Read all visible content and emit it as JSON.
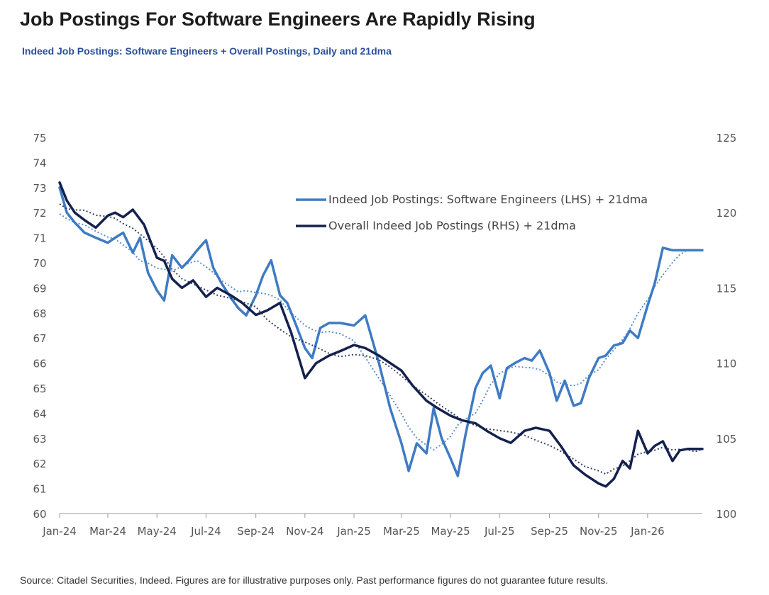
{
  "title": "Job Postings For Software Engineers Are Rapidly Rising",
  "subtitle": "Indeed Job Postings: Software Engineers + Overall Postings, Daily and 21dma",
  "source": "Source: Citadel Securities, Indeed. Figures are for illustrative purposes only. Past performance figures do not guarantee future results.",
  "chart_data": {
    "type": "line",
    "x_ticks": [
      "Jan-24",
      "Mar-24",
      "May-24",
      "Jul-24",
      "Sep-24",
      "Nov-24",
      "Jan-25",
      "Mar-25",
      "May-25",
      "Jul-25",
      "Sep-25",
      "Nov-25",
      "Jan-26"
    ],
    "x_range": [
      "2024-01-01",
      "2026-03-10"
    ],
    "y_left": {
      "range": [
        60,
        75
      ],
      "ticks": [
        "60",
        "61",
        "62",
        "63",
        "64",
        "65",
        "66",
        "67",
        "68",
        "69",
        "70",
        "71",
        "72",
        "73",
        "74",
        "75"
      ]
    },
    "y_right": {
      "range": [
        100,
        125
      ],
      "ticks": [
        "100",
        "105",
        "110",
        "115",
        "120",
        "125"
      ]
    },
    "grid": false,
    "legend_position": "top-center",
    "series": [
      {
        "name": "Indeed Job Postings: Software Engineers (LHS) + 21dma",
        "axis": "left",
        "color": "#3e7bc4",
        "x": [
          "2024-01-01",
          "2024-01-10",
          "2024-01-20",
          "2024-02-01",
          "2024-02-15",
          "2024-03-01",
          "2024-03-10",
          "2024-03-20",
          "2024-04-01",
          "2024-04-10",
          "2024-04-20",
          "2024-05-01",
          "2024-05-10",
          "2024-05-20",
          "2024-06-01",
          "2024-06-10",
          "2024-06-20",
          "2024-07-01",
          "2024-07-10",
          "2024-07-20",
          "2024-08-01",
          "2024-08-10",
          "2024-08-20",
          "2024-09-01",
          "2024-09-10",
          "2024-09-20",
          "2024-10-01",
          "2024-10-10",
          "2024-10-20",
          "2024-11-01",
          "2024-11-10",
          "2024-11-20",
          "2024-12-01",
          "2024-12-15",
          "2025-01-01",
          "2025-01-15",
          "2025-02-01",
          "2025-02-15",
          "2025-03-01",
          "2025-03-10",
          "2025-03-20",
          "2025-04-01",
          "2025-04-10",
          "2025-04-20",
          "2025-05-01",
          "2025-05-10",
          "2025-05-20",
          "2025-06-01",
          "2025-06-10",
          "2025-06-20",
          "2025-07-01",
          "2025-07-10",
          "2025-07-20",
          "2025-08-01",
          "2025-08-10",
          "2025-08-20",
          "2025-09-01",
          "2025-09-10",
          "2025-09-20",
          "2025-10-01",
          "2025-10-10",
          "2025-10-20",
          "2025-11-01",
          "2025-11-10",
          "2025-11-20",
          "2025-12-01",
          "2025-12-10",
          "2025-12-20",
          "2026-01-01",
          "2026-01-10",
          "2026-01-20",
          "2026-02-01",
          "2026-02-10",
          "2026-02-20",
          "2026-03-01",
          "2026-03-10"
        ],
        "values": [
          73.0,
          72.0,
          71.6,
          71.2,
          71.0,
          70.8,
          71.0,
          71.2,
          70.4,
          71.0,
          69.6,
          68.9,
          68.5,
          70.3,
          69.8,
          70.1,
          70.5,
          70.9,
          69.8,
          69.2,
          68.6,
          68.2,
          67.9,
          68.7,
          69.5,
          70.1,
          68.7,
          68.4,
          67.6,
          66.6,
          66.2,
          67.4,
          67.6,
          67.6,
          67.5,
          67.9,
          66.0,
          64.2,
          62.8,
          61.7,
          62.8,
          62.4,
          64.2,
          63.0,
          62.2,
          61.5,
          63.2,
          65.0,
          65.6,
          65.9,
          64.6,
          65.8,
          66.0,
          66.2,
          66.1,
          66.5,
          65.6,
          64.5,
          65.3,
          64.3,
          64.4,
          65.4,
          66.2,
          66.3,
          66.7,
          66.8,
          67.3,
          67.0,
          68.3,
          69.2,
          70.6,
          70.5,
          70.5,
          70.5,
          70.5,
          70.5
        ]
      },
      {
        "name": "Overall Indeed Job Postings (RHS) + 21dma",
        "axis": "right",
        "color": "#14214e",
        "x": [
          "2024-01-01",
          "2024-01-10",
          "2024-01-20",
          "2024-02-01",
          "2024-02-15",
          "2024-03-01",
          "2024-03-10",
          "2024-03-20",
          "2024-04-01",
          "2024-04-15",
          "2024-05-01",
          "2024-05-10",
          "2024-05-20",
          "2024-06-01",
          "2024-06-15",
          "2024-07-01",
          "2024-07-15",
          "2024-08-01",
          "2024-08-15",
          "2024-09-01",
          "2024-09-15",
          "2024-10-01",
          "2024-10-15",
          "2024-11-01",
          "2024-11-15",
          "2024-12-01",
          "2024-12-15",
          "2025-01-01",
          "2025-01-15",
          "2025-02-01",
          "2025-02-15",
          "2025-03-01",
          "2025-03-15",
          "2025-04-01",
          "2025-04-15",
          "2025-05-01",
          "2025-05-15",
          "2025-06-01",
          "2025-06-15",
          "2025-07-01",
          "2025-07-15",
          "2025-08-01",
          "2025-08-15",
          "2025-09-01",
          "2025-09-15",
          "2025-10-01",
          "2025-10-15",
          "2025-11-01",
          "2025-11-10",
          "2025-11-20",
          "2025-12-01",
          "2025-12-10",
          "2025-12-20",
          "2026-01-01",
          "2026-01-10",
          "2026-01-20",
          "2026-02-01",
          "2026-02-10",
          "2026-02-20",
          "2026-03-01",
          "2026-03-10"
        ],
        "values": [
          122.0,
          120.8,
          120.0,
          119.5,
          119.0,
          119.8,
          120.0,
          119.7,
          120.2,
          119.2,
          117.0,
          116.8,
          115.6,
          115.0,
          115.5,
          114.4,
          115.0,
          114.5,
          114.0,
          113.2,
          113.5,
          114.0,
          112.0,
          109.0,
          110.0,
          110.5,
          110.8,
          111.2,
          111.0,
          110.5,
          110.0,
          109.5,
          108.5,
          107.5,
          107.0,
          106.5,
          106.2,
          106.0,
          105.5,
          105.0,
          104.7,
          105.5,
          105.7,
          105.5,
          104.5,
          103.2,
          102.6,
          102.0,
          101.8,
          102.3,
          103.5,
          103.0,
          105.5,
          104.0,
          104.5,
          104.8,
          103.5,
          104.2,
          104.3,
          104.3,
          104.3
        ]
      }
    ],
    "moving_average_style": "dotted"
  }
}
